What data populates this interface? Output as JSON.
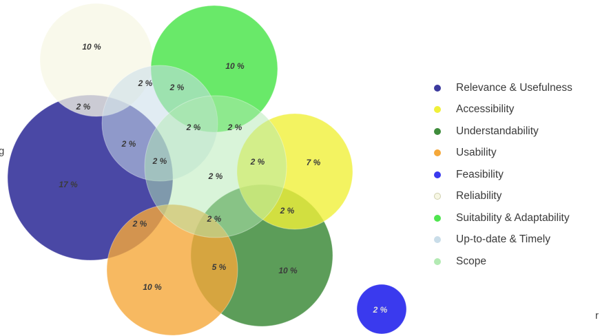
{
  "chart_data": {
    "type": "venn",
    "title": "",
    "legend_position": "right",
    "legend": [
      {
        "name": "Relevance & Usefulness",
        "color": "#3c3a9e"
      },
      {
        "name": "Accessibility",
        "color": "#f0f03a"
      },
      {
        "name": "Understandability",
        "color": "#3f8c3c"
      },
      {
        "name": "Usability",
        "color": "#f5a83a"
      },
      {
        "name": "Feasibility",
        "color": "#3a3aee"
      },
      {
        "name": "Reliability",
        "color": "#f7f7e4"
      },
      {
        "name": "Suitability & Adaptability",
        "color": "#4fe54f"
      },
      {
        "name": "Up-to-date & Timely",
        "color": "#c9dde9"
      },
      {
        "name": "Scope",
        "color": "#b3eab3"
      }
    ],
    "sets": [
      {
        "name": "Relevance & Usefulness",
        "label": "17 %"
      },
      {
        "name": "Accessibility",
        "label": "7 %"
      },
      {
        "name": "Understandability",
        "label": "10 %"
      },
      {
        "name": "Usability",
        "label": "10 %"
      },
      {
        "name": "Feasibility",
        "label": "2 %"
      },
      {
        "name": "Reliability",
        "label": "10 %"
      },
      {
        "name": "Suitability & Adaptability",
        "label": "10 %"
      },
      {
        "name": "Up-to-date & Timely",
        "label": "2 %"
      },
      {
        "name": "Scope",
        "label": "2 %"
      }
    ],
    "intersections": [
      {
        "sets": [
          "Reliability",
          "Up-to-date & Timely",
          "Suitability & Adaptability"
        ],
        "label": "2 %"
      },
      {
        "sets": [
          "Up-to-date & Timely",
          "Suitability & Adaptability"
        ],
        "label": "2 %"
      },
      {
        "sets": [
          "Reliability",
          "Relevance & Usefulness",
          "Up-to-date & Timely"
        ],
        "label": "2 %"
      },
      {
        "sets": [
          "Up-to-date & Timely",
          "Scope"
        ],
        "label": "2 %"
      },
      {
        "sets": [
          "Suitability & Adaptability",
          "Scope"
        ],
        "label": "2 %"
      },
      {
        "sets": [
          "Relevance & Usefulness",
          "Up-to-date & Timely",
          "Scope"
        ],
        "label": "2 %"
      },
      {
        "sets": [
          "Accessibility",
          "Scope"
        ],
        "label": "2 %"
      },
      {
        "sets": [
          "Accessibility",
          "Understandability"
        ],
        "label": "2 %"
      },
      {
        "sets": [
          "Relevance & Usefulness",
          "Usability"
        ],
        "label": "2 %"
      },
      {
        "sets": [
          "Scope",
          "Understandability",
          "Usability"
        ],
        "label": "2 %"
      },
      {
        "sets": [
          "Usability",
          "Understandability"
        ],
        "label": "5 %"
      }
    ]
  },
  "edge_text": {
    "left": "g",
    "right": "r"
  }
}
